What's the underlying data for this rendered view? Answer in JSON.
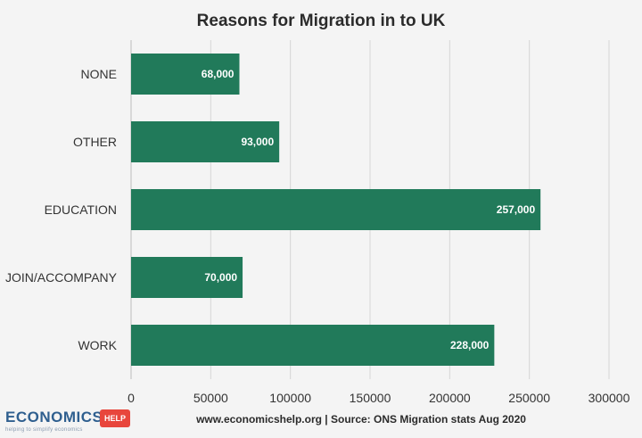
{
  "chart_data": {
    "type": "bar",
    "orientation": "horizontal",
    "title": "Reasons for Migration in to UK",
    "categories": [
      "NONE",
      "OTHER",
      "EDUCATION",
      "JOIN/ACCOMPANY",
      "WORK"
    ],
    "values": [
      68000,
      93000,
      257000,
      70000,
      228000
    ],
    "data_labels": [
      "68,000",
      "93,000",
      "257,000",
      "70,000",
      "228,000"
    ],
    "xlim": [
      0,
      300000
    ],
    "xticks": [
      0,
      50000,
      100000,
      150000,
      200000,
      250000,
      300000
    ],
    "xtick_labels": [
      "0",
      "50000",
      "100000",
      "150000",
      "200000",
      "250000",
      "300000"
    ],
    "xlabel": "",
    "ylabel": "",
    "grid": "vertical",
    "legend": "none",
    "colors": {
      "bar": "#217a5a",
      "grid": "#d6d6d6",
      "background": "#f4f4f4"
    }
  },
  "footer": {
    "source": "www.economicshelp.org | Source: ONS Migration stats Aug 2020"
  },
  "logo": {
    "wordmark": "ECONOMICS",
    "badge": "HELP",
    "tagline": "helping to simplify economics"
  }
}
